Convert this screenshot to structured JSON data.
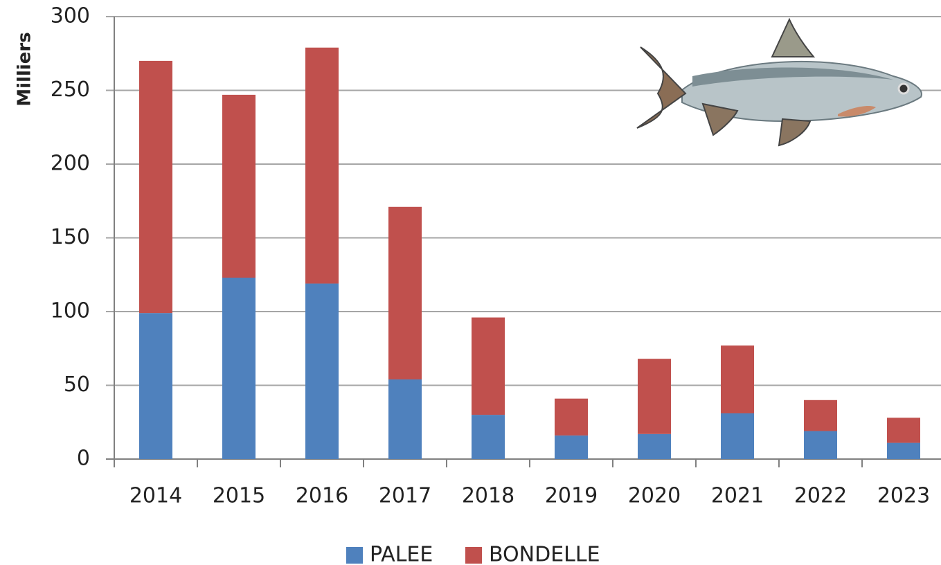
{
  "chart_data": {
    "type": "stacked_bar",
    "y_label": "Milliers",
    "categories": [
      "2014",
      "2015",
      "2016",
      "2017",
      "2018",
      "2019",
      "2020",
      "2021",
      "2022",
      "2023"
    ],
    "series": [
      {
        "name": "PALEE",
        "color": "#4f81bd",
        "values": [
          99,
          123,
          119,
          54,
          30,
          16,
          17,
          31,
          19,
          11
        ]
      },
      {
        "name": "BONDELLE",
        "color": "#c0504d",
        "values": [
          171,
          124,
          160,
          117,
          66,
          25,
          51,
          46,
          21,
          17
        ]
      }
    ],
    "ylim": [
      0,
      300
    ],
    "yticks": [
      0,
      50,
      100,
      150,
      200,
      250,
      300
    ],
    "grid": true,
    "legend": "bottom"
  }
}
